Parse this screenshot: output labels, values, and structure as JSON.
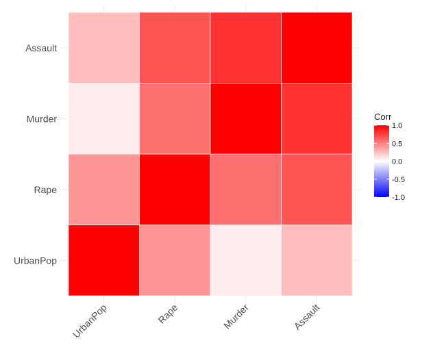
{
  "chart_data": {
    "type": "heatmap",
    "title": "",
    "xlabel": "",
    "ylabel": "",
    "x_categories": [
      "UrbanPop",
      "Rape",
      "Murder",
      "Assault"
    ],
    "y_categories": [
      "UrbanPop",
      "Rape",
      "Murder",
      "Assault"
    ],
    "values": [
      [
        1.0,
        0.41,
        0.07,
        0.26
      ],
      [
        0.41,
        1.0,
        0.56,
        0.67
      ],
      [
        0.07,
        0.56,
        1.0,
        0.8
      ],
      [
        0.26,
        0.67,
        0.8,
        1.0
      ]
    ],
    "grid": true,
    "legend": {
      "title": "Corr",
      "placement": "right",
      "ticks": [
        "1.0",
        "0.5",
        "0.0",
        "-0.5",
        "-1.0"
      ],
      "tick_values": [
        1.0,
        0.5,
        0.0,
        -0.5,
        -1.0
      ],
      "range": [
        -1.0,
        1.0
      ]
    },
    "colors": {
      "high": "#ff0000",
      "mid": "#ffffff",
      "low": "#0000ff",
      "grid": "#ebebeb",
      "text": "#4d4d4d"
    }
  }
}
